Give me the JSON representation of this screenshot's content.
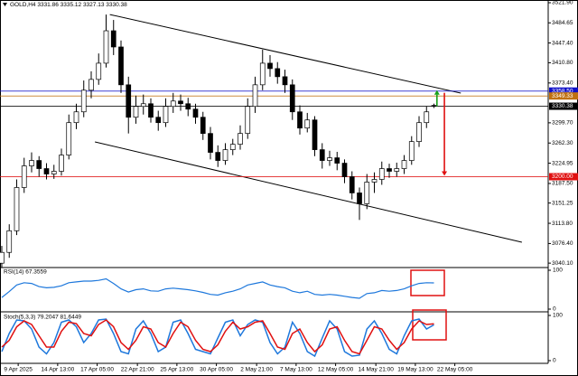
{
  "chart_data": [
    {
      "type": "candlestick",
      "title": "GOLD,H4 3331.86 3335.12 3327.13 3330.38",
      "open": [
        3040,
        3060,
        3100,
        3180,
        3220,
        3230,
        3215,
        3205,
        3210,
        3240,
        3300,
        3320,
        3360,
        3380,
        3410,
        3470,
        3440,
        3370,
        3310,
        3330,
        3335,
        3310,
        3300,
        3330,
        3340,
        3335,
        3325,
        3310,
        3280,
        3245,
        3230,
        3250,
        3260,
        3280,
        3330,
        3370,
        3410,
        3400,
        3385,
        3370,
        3320,
        3290,
        3305,
        3250,
        3230,
        3235,
        3225,
        3200,
        3170,
        3150,
        3190,
        3195,
        3215,
        3210,
        3215,
        3230,
        3265,
        3300,
        3331.86
      ],
      "high": [
        3072,
        3112,
        3195,
        3235,
        3245,
        3238,
        3225,
        3222,
        3252,
        3315,
        3335,
        3378,
        3395,
        3428,
        3500,
        3490,
        3452,
        3385,
        3350,
        3352,
        3345,
        3322,
        3345,
        3355,
        3352,
        3346,
        3335,
        3320,
        3292,
        3258,
        3262,
        3270,
        3295,
        3345,
        3385,
        3435,
        3425,
        3412,
        3398,
        3380,
        3332,
        3318,
        3312,
        3262,
        3248,
        3246,
        3232,
        3210,
        3180,
        3205,
        3208,
        3228,
        3224,
        3226,
        3240,
        3275,
        3312,
        3330,
        3335.12
      ],
      "low": [
        3032,
        3050,
        3092,
        3170,
        3208,
        3200,
        3195,
        3196,
        3202,
        3232,
        3288,
        3310,
        3345,
        3370,
        3402,
        3425,
        3355,
        3280,
        3298,
        3315,
        3300,
        3285,
        3292,
        3318,
        3322,
        3312,
        3298,
        3268,
        3232,
        3218,
        3222,
        3240,
        3250,
        3270,
        3318,
        3360,
        3385,
        3372,
        3355,
        3305,
        3278,
        3282,
        3238,
        3215,
        3220,
        3212,
        3188,
        3158,
        3120,
        3140,
        3170,
        3185,
        3198,
        3200,
        3205,
        3222,
        3255,
        3290,
        3327.13
      ],
      "close": [
        3060,
        3100,
        3180,
        3220,
        3230,
        3215,
        3205,
        3210,
        3240,
        3300,
        3320,
        3360,
        3380,
        3410,
        3470,
        3440,
        3370,
        3310,
        3330,
        3335,
        3310,
        3300,
        3330,
        3340,
        3335,
        3325,
        3310,
        3280,
        3245,
        3230,
        3250,
        3260,
        3280,
        3330,
        3370,
        3410,
        3400,
        3385,
        3370,
        3320,
        3290,
        3305,
        3250,
        3230,
        3235,
        3225,
        3200,
        3170,
        3150,
        3190,
        3195,
        3215,
        3210,
        3215,
        3230,
        3265,
        3300,
        3320,
        3330.38
      ],
      "xlim": [
        -0.24,
        73.33
      ],
      "ylim": [
        3035.3,
        3526.9
      ],
      "yticks": [
        {
          "value": 3521.9,
          "label": "3521.90"
        },
        {
          "value": 3484.65,
          "label": "3484.65"
        },
        {
          "value": 3447.4,
          "label": "3447.40"
        },
        {
          "value": 3410.8,
          "label": "3410.80"
        },
        {
          "value": 3373.4,
          "label": "3373.40"
        },
        {
          "value": 3299.7,
          "label": "3299.70"
        },
        {
          "value": 3262.3,
          "label": "3262.30"
        },
        {
          "value": 3224.95,
          "label": "3224.95"
        },
        {
          "value": 3187.5,
          "label": "3187.50"
        },
        {
          "value": 3151.25,
          "label": "3151.25"
        },
        {
          "value": 3113.8,
          "label": "3113.80"
        },
        {
          "value": 3076.4,
          "label": "3076.40"
        },
        {
          "value": 3040.1,
          "label": "3040.10"
        }
      ],
      "xticks": [
        {
          "value": 2.2,
          "label": "9 Apr 2025"
        },
        {
          "value": 7.5,
          "label": "14 Apr 13:00"
        },
        {
          "value": 12.8,
          "label": "17 Apr 05:00"
        },
        {
          "value": 18.2,
          "label": "22 Apr 21:00"
        },
        {
          "value": 23.5,
          "label": "25 Apr 13:00"
        },
        {
          "value": 28.8,
          "label": "30 Apr 05:00"
        },
        {
          "value": 34.2,
          "label": "2 May 21:00"
        },
        {
          "value": 39.5,
          "label": "7 May 13:00"
        },
        {
          "value": 44.8,
          "label": "12 May 05:00"
        },
        {
          "value": 50.2,
          "label": "14 May 21:00"
        },
        {
          "value": 55.5,
          "label": "19 May 13:00"
        },
        {
          "value": 60.8,
          "label": "22 May 05:00"
        }
      ],
      "levels": [
        {
          "value": 3358.5,
          "label": "3358.50",
          "color": "#1010c8"
        },
        {
          "value": 3349.33,
          "label": "3349.33",
          "color": "#c07010"
        },
        {
          "value": 3330.38,
          "label": "3330.38",
          "color": "#000000"
        },
        {
          "value": 3200,
          "label": "3200.00",
          "color": "#e01010"
        }
      ],
      "trendlines": [
        {
          "start": [
            14.5,
            3500
          ],
          "end": [
            61.6,
            3354.7
          ],
          "color": "#000000"
        },
        {
          "start": [
            12.5,
            3264.4
          ],
          "end": [
            69.8,
            3078.7
          ],
          "color": "#000000"
        }
      ]
    },
    {
      "type": "line",
      "title": "RSI(14) 67.3559",
      "color": "#1e78dc",
      "ylim": [
        0,
        100
      ],
      "yticks": [
        0,
        100
      ],
      "values": [
        30,
        45,
        62,
        68,
        66,
        58,
        55,
        56,
        60,
        68,
        70,
        72,
        72,
        74,
        78,
        66,
        52,
        44,
        50,
        52,
        47,
        46,
        52,
        54,
        52,
        50,
        47,
        43,
        38,
        36,
        42,
        46,
        52,
        62,
        66,
        70,
        62,
        58,
        55,
        46,
        42,
        46,
        38,
        36,
        38,
        36,
        33,
        30,
        28,
        40,
        42,
        48,
        46,
        48,
        52,
        60,
        66,
        68,
        67.3559
      ]
    },
    {
      "type": "line",
      "title": "Stoch(5,3,3) 79.2047 81.6449",
      "ylim": [
        0,
        100
      ],
      "yticks": [
        0,
        100
      ],
      "series": [
        {
          "color": "#1e78dc",
          "values": [
            20,
            60,
            90,
            88,
            70,
            30,
            15,
            40,
            85,
            90,
            75,
            40,
            60,
            90,
            92,
            60,
            20,
            15,
            70,
            88,
            60,
            20,
            30,
            85,
            90,
            60,
            25,
            20,
            15,
            50,
            85,
            90,
            55,
            80,
            90,
            85,
            40,
            15,
            30,
            85,
            60,
            20,
            10,
            50,
            88,
            70,
            20,
            10,
            12,
            70,
            88,
            60,
            25,
            15,
            55,
            88,
            92,
            70,
            79.2047
          ]
        },
        {
          "color": "#e01010",
          "values": [
            30,
            45,
            75,
            88,
            80,
            55,
            30,
            30,
            65,
            85,
            82,
            60,
            55,
            80,
            90,
            75,
            40,
            25,
            45,
            75,
            70,
            40,
            30,
            60,
            85,
            75,
            45,
            25,
            20,
            35,
            65,
            85,
            70,
            75,
            85,
            88,
            60,
            30,
            25,
            60,
            70,
            40,
            20,
            35,
            70,
            75,
            45,
            20,
            15,
            45,
            75,
            70,
            45,
            25,
            40,
            70,
            88,
            80,
            81.6449
          ]
        }
      ]
    }
  ]
}
